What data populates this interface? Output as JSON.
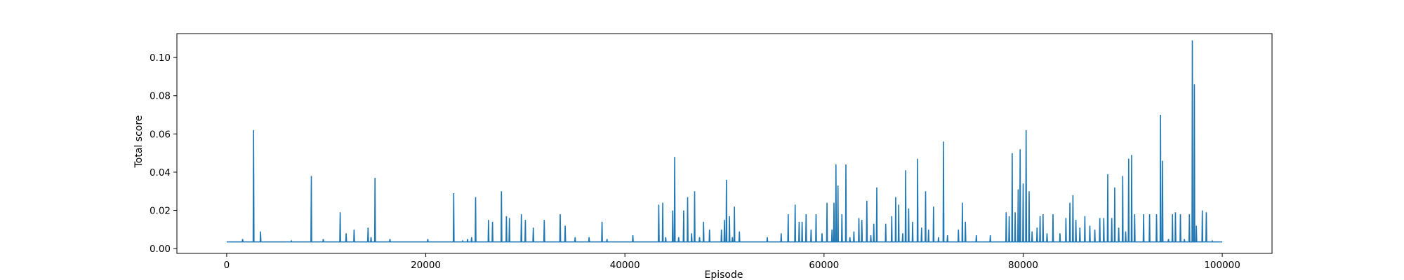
{
  "chart_data": {
    "type": "line",
    "title": "",
    "xlabel": "Episode",
    "ylabel": "Total score",
    "xlim": [
      -5000,
      105000
    ],
    "ylim": [
      -0.0025,
      0.1125
    ],
    "xticks": [
      0,
      20000,
      40000,
      60000,
      80000,
      100000
    ],
    "yticks": [
      0.0,
      0.02,
      0.04,
      0.06,
      0.08,
      0.1
    ],
    "xtick_labels": [
      "0",
      "20000",
      "40000",
      "60000",
      "80000",
      "100000"
    ],
    "ytick_labels": [
      "0.00",
      "0.02",
      "0.04",
      "0.06",
      "0.08",
      "0.10"
    ],
    "grid": false,
    "baseline": 0.0035,
    "x_end": 100000,
    "series": [
      {
        "color": "#1f77b4",
        "spikes": [
          [
            1600,
            0.005
          ],
          [
            2700,
            0.062
          ],
          [
            3400,
            0.009
          ],
          [
            6500,
            0.004
          ],
          [
            8500,
            0.038
          ],
          [
            9700,
            0.005
          ],
          [
            11400,
            0.019
          ],
          [
            12000,
            0.008
          ],
          [
            12800,
            0.01
          ],
          [
            14200,
            0.011
          ],
          [
            14500,
            0.006
          ],
          [
            14900,
            0.037
          ],
          [
            16400,
            0.005
          ],
          [
            20200,
            0.005
          ],
          [
            22800,
            0.029
          ],
          [
            23700,
            0.004
          ],
          [
            24200,
            0.005
          ],
          [
            24600,
            0.006
          ],
          [
            25000,
            0.027
          ],
          [
            26300,
            0.015
          ],
          [
            26700,
            0.014
          ],
          [
            27600,
            0.03
          ],
          [
            28100,
            0.017
          ],
          [
            28400,
            0.016
          ],
          [
            29600,
            0.018
          ],
          [
            30000,
            0.015
          ],
          [
            30800,
            0.011
          ],
          [
            31900,
            0.015
          ],
          [
            33500,
            0.018
          ],
          [
            34000,
            0.012
          ],
          [
            35000,
            0.006
          ],
          [
            36400,
            0.006
          ],
          [
            37700,
            0.014
          ],
          [
            38200,
            0.005
          ],
          [
            40800,
            0.007
          ],
          [
            43400,
            0.023
          ],
          [
            43800,
            0.024
          ],
          [
            44100,
            0.006
          ],
          [
            44800,
            0.02
          ],
          [
            45000,
            0.048
          ],
          [
            45400,
            0.006
          ],
          [
            45900,
            0.02
          ],
          [
            46300,
            0.027
          ],
          [
            46700,
            0.008
          ],
          [
            47000,
            0.03
          ],
          [
            47500,
            0.006
          ],
          [
            47900,
            0.014
          ],
          [
            48500,
            0.01
          ],
          [
            49700,
            0.01
          ],
          [
            50000,
            0.015
          ],
          [
            50200,
            0.036
          ],
          [
            50500,
            0.017
          ],
          [
            50800,
            0.006
          ],
          [
            51000,
            0.022
          ],
          [
            51500,
            0.009
          ],
          [
            54300,
            0.006
          ],
          [
            55700,
            0.008
          ],
          [
            56400,
            0.018
          ],
          [
            57100,
            0.023
          ],
          [
            57500,
            0.014
          ],
          [
            57800,
            0.014
          ],
          [
            58200,
            0.018
          ],
          [
            58700,
            0.01
          ],
          [
            59200,
            0.018
          ],
          [
            59800,
            0.008
          ],
          [
            60300,
            0.024
          ],
          [
            60800,
            0.01
          ],
          [
            61000,
            0.024
          ],
          [
            61200,
            0.044
          ],
          [
            61400,
            0.033
          ],
          [
            61800,
            0.018
          ],
          [
            62200,
            0.044
          ],
          [
            62600,
            0.006
          ],
          [
            63000,
            0.009
          ],
          [
            63500,
            0.016
          ],
          [
            63800,
            0.015
          ],
          [
            64300,
            0.025
          ],
          [
            64700,
            0.007
          ],
          [
            65000,
            0.013
          ],
          [
            65300,
            0.032
          ],
          [
            66200,
            0.013
          ],
          [
            66800,
            0.017
          ],
          [
            67200,
            0.027
          ],
          [
            67500,
            0.023
          ],
          [
            67900,
            0.008
          ],
          [
            68200,
            0.041
          ],
          [
            68500,
            0.021
          ],
          [
            68900,
            0.014
          ],
          [
            69400,
            0.047
          ],
          [
            69800,
            0.011
          ],
          [
            70200,
            0.03
          ],
          [
            70500,
            0.01
          ],
          [
            71000,
            0.022
          ],
          [
            71500,
            0.006
          ],
          [
            72000,
            0.056
          ],
          [
            72400,
            0.007
          ],
          [
            73500,
            0.01
          ],
          [
            73900,
            0.024
          ],
          [
            74200,
            0.014
          ],
          [
            75300,
            0.007
          ],
          [
            76700,
            0.007
          ],
          [
            78300,
            0.019
          ],
          [
            78600,
            0.017
          ],
          [
            78900,
            0.05
          ],
          [
            79200,
            0.019
          ],
          [
            79500,
            0.031
          ],
          [
            79700,
            0.052
          ],
          [
            80000,
            0.034
          ],
          [
            80300,
            0.062
          ],
          [
            80600,
            0.03
          ],
          [
            80900,
            0.009
          ],
          [
            81400,
            0.011
          ],
          [
            81700,
            0.017
          ],
          [
            82000,
            0.018
          ],
          [
            82400,
            0.008
          ],
          [
            83000,
            0.018
          ],
          [
            83700,
            0.008
          ],
          [
            84300,
            0.016
          ],
          [
            84700,
            0.024
          ],
          [
            85000,
            0.028
          ],
          [
            85300,
            0.015
          ],
          [
            85700,
            0.011
          ],
          [
            86200,
            0.017
          ],
          [
            86700,
            0.012
          ],
          [
            87200,
            0.01
          ],
          [
            87700,
            0.016
          ],
          [
            88100,
            0.016
          ],
          [
            88500,
            0.039
          ],
          [
            88900,
            0.016
          ],
          [
            89200,
            0.032
          ],
          [
            89600,
            0.011
          ],
          [
            90000,
            0.038
          ],
          [
            90300,
            0.009
          ],
          [
            90600,
            0.047
          ],
          [
            90900,
            0.049
          ],
          [
            91200,
            0.018
          ],
          [
            92100,
            0.018
          ],
          [
            92700,
            0.018
          ],
          [
            93400,
            0.018
          ],
          [
            93800,
            0.07
          ],
          [
            94000,
            0.046
          ],
          [
            94600,
            0.005
          ],
          [
            95000,
            0.018
          ],
          [
            95300,
            0.019
          ],
          [
            95800,
            0.018
          ],
          [
            96200,
            0.005
          ],
          [
            96700,
            0.018
          ],
          [
            97000,
            0.109
          ],
          [
            97200,
            0.086
          ],
          [
            97400,
            0.012
          ],
          [
            98000,
            0.02
          ],
          [
            98400,
            0.019
          ],
          [
            99000,
            0.004
          ]
        ]
      }
    ]
  }
}
